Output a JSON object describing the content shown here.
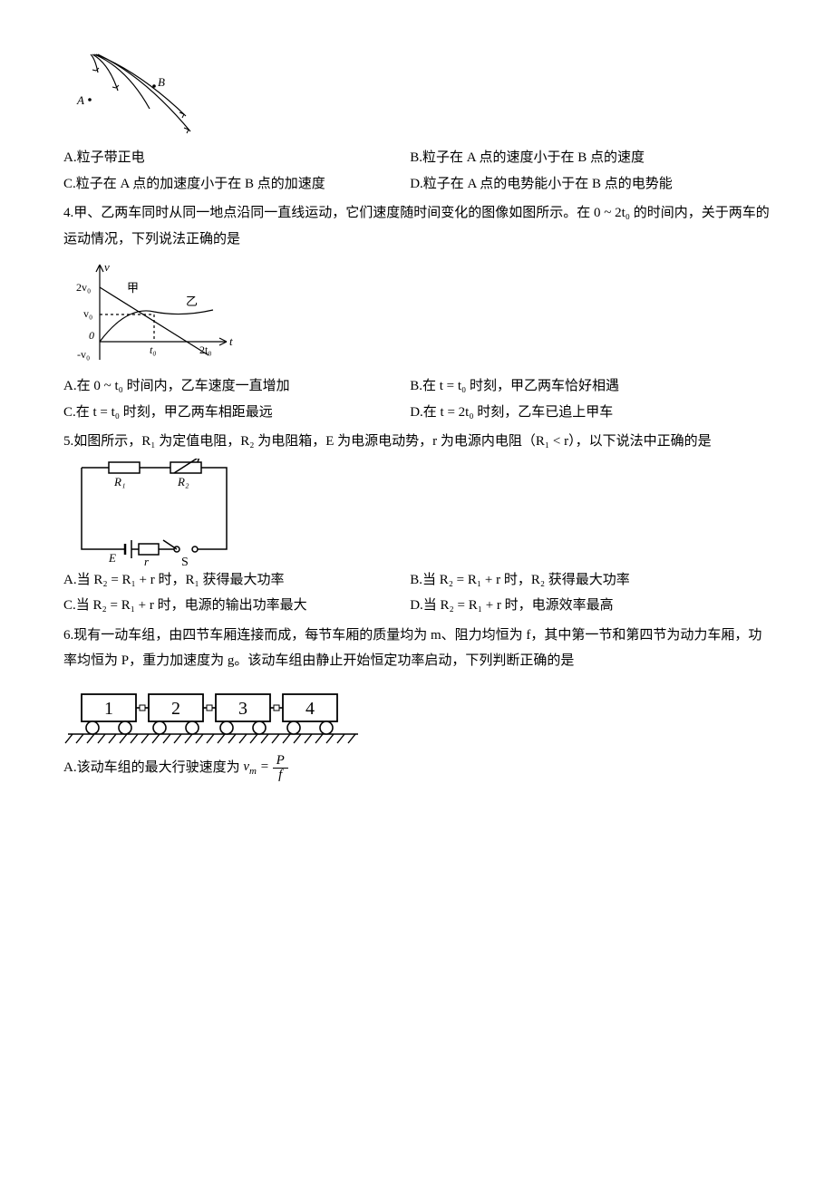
{
  "fig3": {
    "stroke": "#000000",
    "bg": "#ffffff",
    "label_A": "A",
    "label_B": "B"
  },
  "q3": {
    "optA": "A.粒子带正电",
    "optB": "B.粒子在 A 点的速度小于在 B 点的速度",
    "optC": "C.粒子在 A 点的加速度小于在 B 点的加速度",
    "optD": "D.粒子在 A 点的电势能小于在 B 点的电势能"
  },
  "q4": {
    "stem": "4.甲、乙两车同时从同一地点沿同一直线运动，它们速度随时间变化的图像如图所示。在 0 ~ 2t₀ 的时间内，关于两车的运动情况，下列说法正确的是",
    "optA": "A.在 0 ~ t₀ 时间内，乙车速度一直增加",
    "optB": "B.在 t = t₀ 时刻，甲乙两车恰好相遇",
    "optC": "C.在 t = t₀ 时刻，甲乙两车相距最远",
    "optD": "D.在 t = 2t₀ 时刻，乙车已追上甲车"
  },
  "fig4": {
    "stroke": "#000000",
    "bg": "#ffffff",
    "axis_v": "v",
    "axis_t": "t",
    "lbl_2v0": "2v₀",
    "lbl_v0": "v₀",
    "lbl_0": "0",
    "lbl_nv0": "-v₀",
    "lbl_t0": "t₀",
    "lbl_2t0": "2t₀",
    "lbl_jia": "甲",
    "lbl_yi": "乙"
  },
  "q5": {
    "stem": "5.如图所示，R₁ 为定值电阻，R₂ 为电阻箱，E 为电源电动势，r 为电源内电阻（R₁ < r），以下说法中正确的是",
    "optA": "A.当 R₂ = R₁ + r 时，R₁ 获得最大功率",
    "optB": "B.当 R₂ = R₁ + r 时，R₂ 获得最大功率",
    "optC": "C.当 R₂ = R₁ + r 时，电源的输出功率最大",
    "optD": "D.当 R₂ = R₁ + r 时，电源效率最高"
  },
  "fig5": {
    "stroke": "#000000",
    "bg": "#ffffff",
    "lbl_R1": "R₁",
    "lbl_R2": "R₂",
    "lbl_E": "E",
    "lbl_r": "r",
    "lbl_S": "S"
  },
  "q6": {
    "stem": "6.现有一动车组，由四节车厢连接而成，每节车厢的质量均为 m、阻力均恒为 f，其中第一节和第四节为动力车厢，功率均恒为 P，重力加速度为 g。该动车组由静止开始恒定功率启动，下列判断正确的是",
    "optA_pre": "A.该动车组的最大行驶速度为 ",
    "optA_frac_num": "P",
    "optA_frac_den": "f"
  },
  "fig6": {
    "stroke": "#000000",
    "bg": "#ffffff",
    "car_labels": [
      "1",
      "2",
      "3",
      "4"
    ]
  }
}
